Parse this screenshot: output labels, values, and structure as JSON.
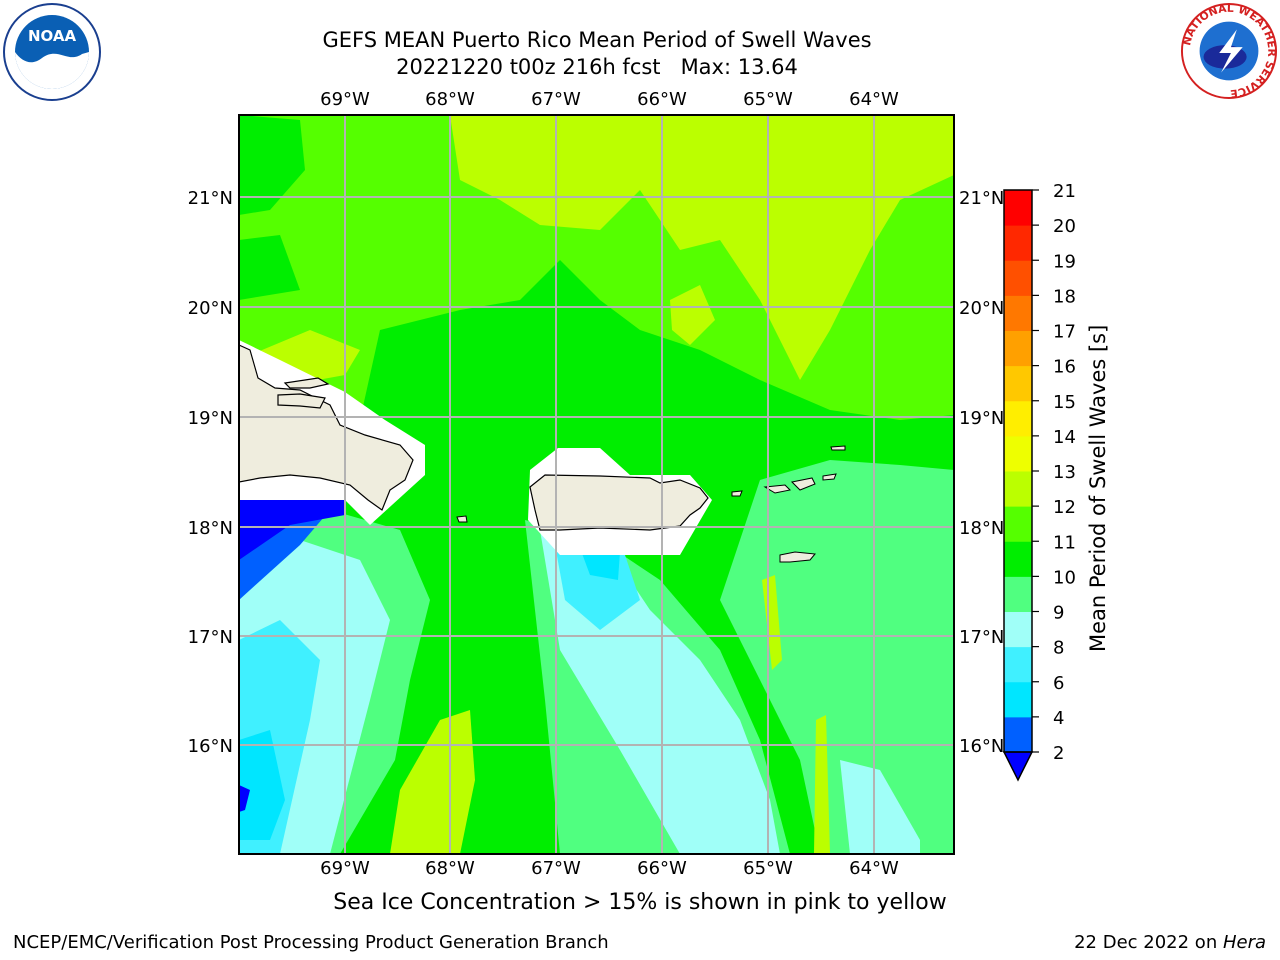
{
  "header": {
    "title_line1": "GEFS MEAN Puerto Rico Mean Period of Swell Waves",
    "title_line2": "20221220 t00z 216h fcst   Max: 13.64"
  },
  "logos": {
    "noaa": {
      "text": "NOAA"
    },
    "nws": {
      "ring_text": "NATIONAL WEATHER SERVICE"
    }
  },
  "map": {
    "lon_ticks": [
      "69°W",
      "68°W",
      "67°W",
      "66°W",
      "65°W",
      "64°W"
    ],
    "lat_ticks": [
      "21°N",
      "20°N",
      "19°N",
      "18°N",
      "17°N",
      "16°N"
    ],
    "land_color": "#efedde",
    "grid_color": "#b3b3b3"
  },
  "colorbar": {
    "label": "Mean Period of Swell Waves [s]",
    "ticks": [
      "2",
      "4",
      "6",
      "8",
      "9",
      "10",
      "11",
      "12",
      "13",
      "14",
      "15",
      "16",
      "17",
      "18",
      "19",
      "20",
      "21"
    ],
    "colors": [
      "#0060ff",
      "#00e6ff",
      "#40f0ff",
      "#a0fff8",
      "#50ff80",
      "#00ee00",
      "#55ff00",
      "#bbff00",
      "#eeff00",
      "#ffee00",
      "#ffc800",
      "#ffa000",
      "#ff7800",
      "#ff5000",
      "#ff2800",
      "#ff0000"
    ],
    "under_color": "#0000ff"
  },
  "caption": "Sea Ice Concentration > 15% is shown in pink to yellow",
  "footer": {
    "left": "NCEP/EMC/Verification Post Processing Product Generation Branch",
    "right_prefix": "22 Dec 2022 on ",
    "right_machine": "Hera"
  }
}
